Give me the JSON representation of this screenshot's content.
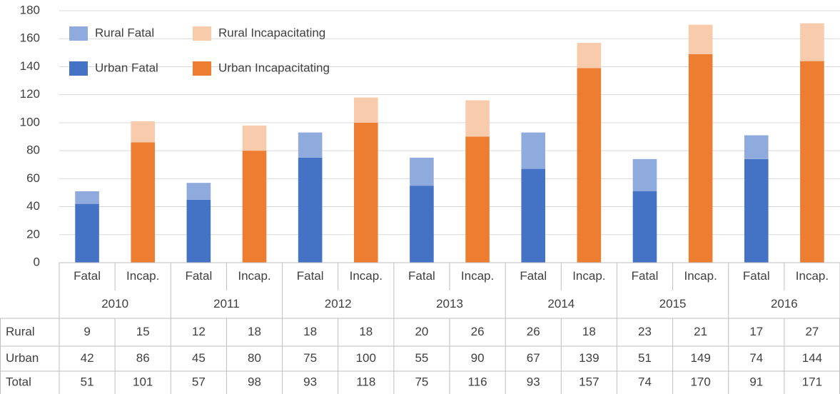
{
  "chart_data": {
    "type": "bar",
    "stacked": true,
    "categories": [
      "Fatal",
      "Incap.",
      "Fatal",
      "Incap.",
      "Fatal",
      "Incap.",
      "Fatal",
      "Incap.",
      "Fatal",
      "Incap.",
      "Fatal",
      "Incap.",
      "Fatal",
      "Incap."
    ],
    "groups": [
      "2010",
      "2011",
      "2012",
      "2013",
      "2014",
      "2015",
      "2016"
    ],
    "series": [
      {
        "name": "Urban Fatal",
        "color": "#4472c4",
        "values": [
          42,
          null,
          45,
          null,
          75,
          null,
          55,
          null,
          67,
          null,
          51,
          null,
          74,
          null
        ]
      },
      {
        "name": "Rural Fatal",
        "color": "#8faadc",
        "values": [
          9,
          null,
          12,
          null,
          18,
          null,
          20,
          null,
          26,
          null,
          23,
          null,
          17,
          null
        ]
      },
      {
        "name": "Urban Incapacitating",
        "color": "#ed7d31",
        "values": [
          null,
          86,
          null,
          80,
          null,
          100,
          null,
          90,
          null,
          139,
          null,
          149,
          null,
          144
        ]
      },
      {
        "name": "Rural Incapacitating",
        "color": "#f8cbad",
        "values": [
          null,
          15,
          null,
          18,
          null,
          18,
          null,
          26,
          null,
          18,
          null,
          21,
          null,
          27
        ]
      }
    ],
    "ylim": [
      0,
      180
    ],
    "yticks": [
      0,
      20,
      40,
      60,
      80,
      100,
      120,
      140,
      160,
      180
    ],
    "grid": true
  },
  "table": {
    "rows": [
      {
        "label": "Rural",
        "values": [
          9,
          15,
          12,
          18,
          18,
          18,
          20,
          26,
          26,
          18,
          23,
          21,
          17,
          27
        ]
      },
      {
        "label": "Urban",
        "values": [
          42,
          86,
          45,
          80,
          75,
          100,
          55,
          90,
          67,
          139,
          51,
          149,
          74,
          144
        ]
      },
      {
        "label": "Total",
        "values": [
          51,
          101,
          57,
          98,
          93,
          118,
          75,
          116,
          93,
          157,
          74,
          170,
          91,
          171
        ]
      }
    ]
  }
}
